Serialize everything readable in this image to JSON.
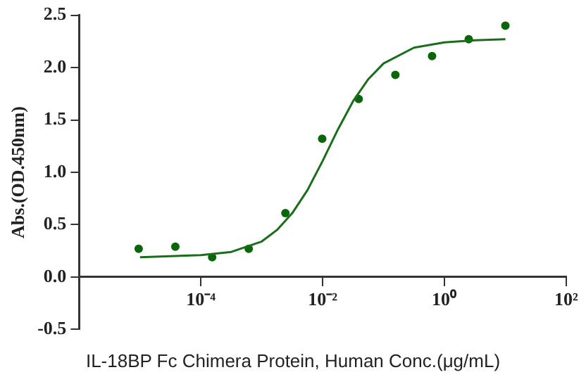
{
  "chart_data": {
    "type": "scatter",
    "xlabel": "IL-18BP Fc Chimera Protein, Human Conc.(μg/mL)",
    "ylabel": "Abs.(OD.450nm)",
    "log": "x",
    "grid": false,
    "legend": false,
    "xlim": [
      1e-06,
      100
    ],
    "xticks": [
      {
        "value": 0.0001,
        "label": "10⁻⁴"
      },
      {
        "value": 0.01,
        "label": "10⁻²"
      },
      {
        "value": 1,
        "label": "10⁰"
      },
      {
        "value": 100,
        "label": "10²"
      }
    ],
    "ylim": [
      -0.5,
      2.5
    ],
    "yticks": [
      -0.5,
      {
        "value": 0,
        "label": "0.0"
      },
      0.5,
      {
        "value": 1,
        "label": "1.0"
      },
      1.5,
      {
        "value": 2,
        "label": "2.0"
      },
      2.5
    ],
    "series": [
      {
        "type": "line",
        "color": "#1a6e1a",
        "line_style": "solid",
        "marker": "none",
        "x": [
          1e-05,
          3.16e-05,
          0.0001,
          0.000316,
          0.001,
          0.00178,
          0.00316,
          0.00562,
          0.01,
          0.0178,
          0.0316,
          0.0562,
          0.1,
          0.316,
          1,
          3.16,
          10
        ],
        "values": [
          0.19,
          0.2,
          0.21,
          0.24,
          0.34,
          0.45,
          0.61,
          0.83,
          1.11,
          1.41,
          1.68,
          1.89,
          2.04,
          2.19,
          2.24,
          2.26,
          2.27
        ]
      },
      {
        "color": "#0b650b",
        "marker": "circle",
        "x": [
          9.5e-06,
          3.8e-05,
          0.000153,
          0.00061,
          0.00244,
          0.0098,
          0.039,
          0.156,
          0.625,
          2.5,
          10
        ],
        "values": [
          0.27,
          0.29,
          0.19,
          0.27,
          0.61,
          1.32,
          1.7,
          1.93,
          2.11,
          2.27,
          2.4
        ]
      }
    ]
  }
}
